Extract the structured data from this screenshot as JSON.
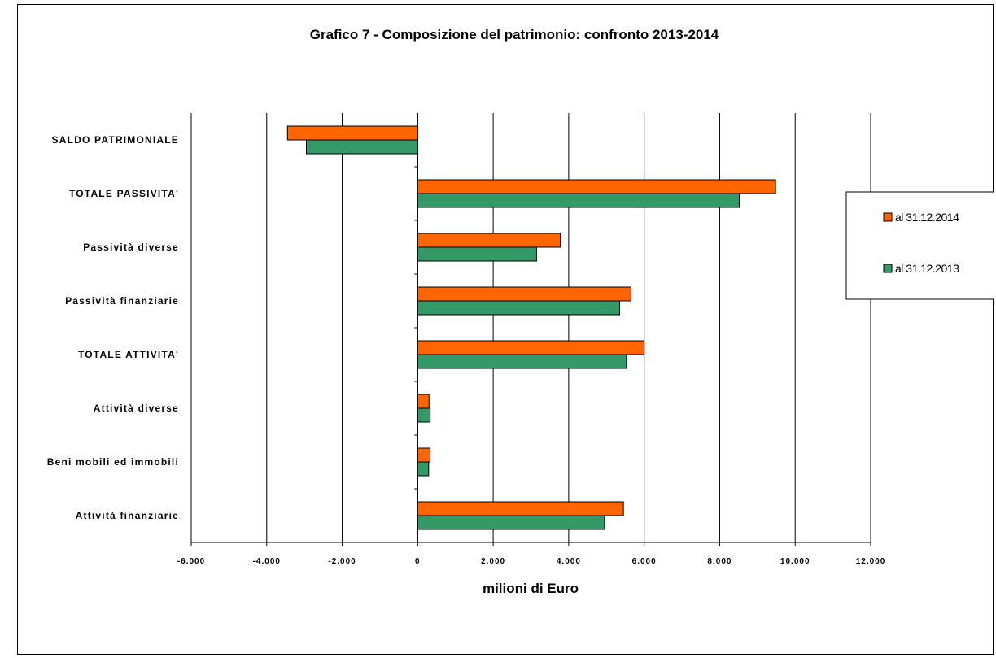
{
  "chart_data": {
    "type": "bar",
    "orientation": "horizontal",
    "title": "Grafico 7 - Composizione del patrimonio: confronto 2013-2014",
    "xlabel": "milioni di Euro",
    "ylabel": "",
    "xlim": [
      -6000,
      12000
    ],
    "xticks": [
      -6000,
      -4000,
      -2000,
      0,
      2000,
      4000,
      6000,
      8000,
      10000,
      12000
    ],
    "xtick_labels": [
      "-6.000",
      "-4.000",
      "-2.000",
      "0",
      "2.000",
      "4.000",
      "6.000",
      "8.000",
      "10.000",
      "12.000"
    ],
    "grid": "vertical",
    "legend_position": "right",
    "categories": [
      "SALDO PATRIMONIALE",
      "TOTALE PASSIVITA'",
      "Passività diverse",
      "Passività finanziarie",
      "TOTALE ATTIVITA'",
      "Attività diverse",
      "Beni mobili ed immobili",
      "Attività finanziarie"
    ],
    "series": [
      {
        "name": "al 31.12.2014",
        "color": "#ff6600",
        "values": [
          -3450,
          9480,
          3780,
          5650,
          6000,
          300,
          330,
          5450
        ]
      },
      {
        "name": "al 31.12.2013",
        "color": "#339966",
        "values": [
          -2950,
          8520,
          3150,
          5350,
          5530,
          330,
          290,
          4950
        ]
      }
    ]
  }
}
